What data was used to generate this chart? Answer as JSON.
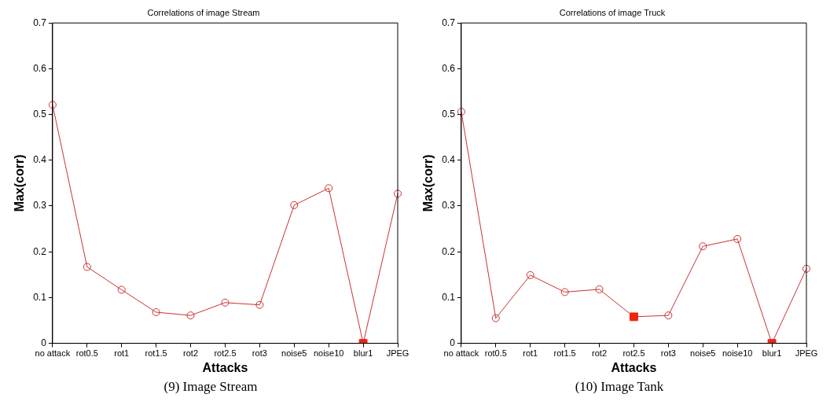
{
  "chart_data": [
    {
      "type": "line",
      "title": "Correlations of image Stream",
      "xlabel": "Attacks",
      "ylabel": "Max(corr)",
      "categories": [
        "no attack",
        "rot0.5",
        "rot1",
        "rot1.5",
        "rot2",
        "rot2.5",
        "rot3",
        "noise5",
        "noise10",
        "blur1",
        "JPEG"
      ],
      "ylim": [
        0,
        0.7
      ],
      "yticks": [
        0,
        0.1,
        0.2,
        0.3,
        0.4,
        0.5,
        0.6,
        0.7
      ],
      "series": [
        {
          "color": "#c83232",
          "marker": "circle",
          "values": [
            0.521,
            0.167,
            0.117,
            0.068,
            0.061,
            0.089,
            0.084,
            0.302,
            0.339,
            0,
            0.327
          ]
        },
        {
          "type": "scatter",
          "color": "#ff2000",
          "marker": "square",
          "x": [
            "blur1"
          ],
          "values": [
            0
          ]
        }
      ],
      "annotations": [
        "(9) Image Stream"
      ]
    },
    {
      "type": "line",
      "title": "Correlations of image Truck",
      "xlabel": "Attacks",
      "ylabel": "Max(corr)",
      "categories": [
        "no attack",
        "rot0.5",
        "rot1",
        "rot1.5",
        "rot2",
        "rot2.5",
        "rot3",
        "noise5",
        "noise10",
        "blur1",
        "JPEG"
      ],
      "ylim": [
        0,
        0.7
      ],
      "yticks": [
        0,
        0.1,
        0.2,
        0.3,
        0.4,
        0.5,
        0.6,
        0.7
      ],
      "series": [
        {
          "color": "#c83232",
          "marker": "circle",
          "values": [
            0.506,
            0.055,
            0.149,
            0.112,
            0.118,
            0.058,
            0.061,
            0.212,
            0.228,
            0,
            0.163
          ]
        },
        {
          "type": "scatter",
          "color": "#ff2000",
          "marker": "square",
          "x": [
            "rot2.5",
            "blur1"
          ],
          "values": [
            0.058,
            0
          ]
        }
      ],
      "annotations": [
        "(10) Image Tank"
      ]
    }
  ]
}
